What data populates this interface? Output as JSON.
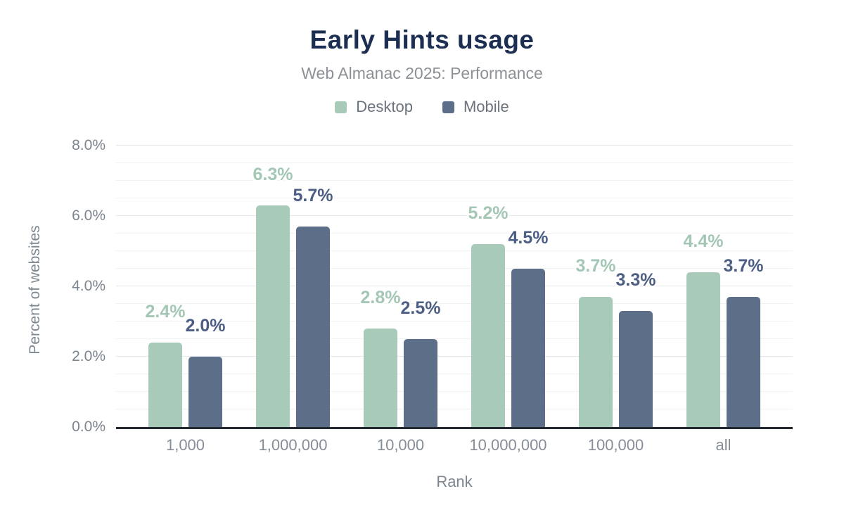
{
  "header": {
    "title": "Early Hints usage",
    "subtitle": "Web Almanac 2025: Performance"
  },
  "chart_data": {
    "type": "bar",
    "title": "Early Hints usage",
    "subtitle": "Web Almanac 2025: Performance",
    "xlabel": "Rank",
    "ylabel": "Percent of websites",
    "categories": [
      "1,000",
      "1,000,000",
      "10,000",
      "10,000,000",
      "100,000",
      "all"
    ],
    "series": [
      {
        "name": "Desktop",
        "color": "#a8cbb9",
        "label_color": "#a3c7b4",
        "values": [
          2.4,
          6.3,
          2.8,
          5.2,
          3.7,
          4.4
        ],
        "labels": [
          "2.4%",
          "6.3%",
          "2.8%",
          "5.2%",
          "3.7%",
          "4.4%"
        ]
      },
      {
        "name": "Mobile",
        "color": "#5d6e89",
        "label_color": "#4d5e84",
        "values": [
          2.0,
          5.7,
          2.5,
          4.5,
          3.3,
          3.7
        ],
        "labels": [
          "2.0%",
          "5.7%",
          "2.5%",
          "4.5%",
          "3.3%",
          "3.7%"
        ]
      }
    ],
    "y_axis": {
      "min": 0,
      "max": 8,
      "major_step": 2,
      "minor_step": 0.5,
      "tick_labels": [
        "0.0%",
        "2.0%",
        "4.0%",
        "6.0%",
        "8.0%"
      ]
    },
    "grid": true,
    "legend_position": "top"
  },
  "colors": {
    "title": "#1c2e52",
    "subtitle": "#8d9196",
    "axis_text": "#7d858e",
    "legend_text": "#6a727c",
    "axis_line": "#24292f",
    "gridline_minor": "#f0f1f3",
    "gridline_major": "#e5e8ea",
    "background": "#ffffff"
  }
}
